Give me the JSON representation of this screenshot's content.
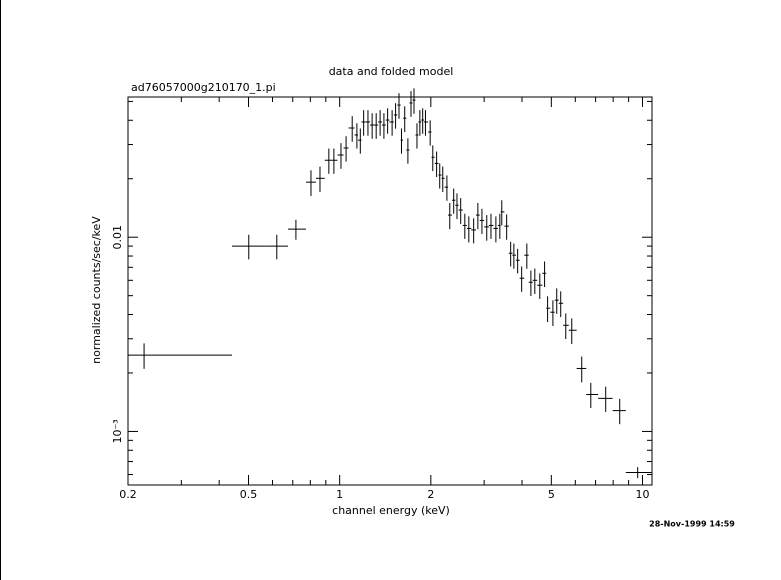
{
  "chart_data": {
    "type": "errorbar",
    "title": "data and folded model",
    "subtitle": "ad76057000g210170_1.pi",
    "x_label": "channel energy (keV)",
    "y_label": "normalized counts/sec/keV",
    "date": "28-Nov-1999 14:59",
    "log_x": true,
    "log_y": true,
    "color": "#000000",
    "xlim": [
      0.2,
      10.75
    ],
    "ylim": [
      0.00053,
      0.0527
    ],
    "xticks": [
      0.2,
      0.5,
      1,
      2,
      5,
      10
    ],
    "minor_xticks": [
      0.3,
      0.4,
      0.6,
      0.7,
      0.8,
      0.9,
      3,
      4,
      6,
      7,
      8,
      9
    ],
    "yticks": [
      {
        "value": 0.001,
        "label": "10⁻³"
      },
      0.01
    ],
    "minor_yticks": [
      0.0006,
      0.0007,
      0.0008,
      0.0009,
      0.002,
      0.003,
      0.004,
      0.005,
      0.006,
      0.007,
      0.008,
      0.009,
      0.02,
      0.03,
      0.04,
      0.05
    ],
    "x": [
      0.226,
      0.501,
      0.62,
      0.717,
      0.804,
      0.861,
      0.921,
      0.957,
      1.01,
      1.05,
      1.1,
      1.14,
      1.17,
      1.2,
      1.24,
      1.28,
      1.32,
      1.36,
      1.4,
      1.44,
      1.49,
      1.53,
      1.57,
      1.6,
      1.64,
      1.68,
      1.72,
      1.76,
      1.8,
      1.84,
      1.88,
      1.92,
      1.99,
      2.03,
      2.09,
      2.14,
      2.19,
      2.26,
      2.31,
      2.38,
      2.44,
      2.51,
      2.59,
      2.67,
      2.77,
      2.86,
      2.95,
      3.06,
      3.16,
      3.28,
      3.38,
      3.43,
      3.56,
      3.67,
      3.76,
      3.87,
      3.99,
      4.15,
      4.28,
      4.41,
      4.58,
      4.75,
      4.86,
      5.06,
      5.21,
      5.37,
      5.58,
      5.84,
      6.3,
      6.75,
      7.56,
      8.41,
      9.64
    ],
    "bins": [
      0.2,
      0.441,
      0.57,
      0.675,
      0.774,
      0.835,
      0.893,
      0.939,
      0.983,
      1.03,
      1.07,
      1.12,
      1.15,
      1.18,
      1.22,
      1.26,
      1.3,
      1.34,
      1.38,
      1.42,
      1.46,
      1.51,
      1.55,
      1.59,
      1.62,
      1.66,
      1.7,
      1.74,
      1.78,
      1.82,
      1.86,
      1.9,
      1.96,
      2.01,
      2.06,
      2.12,
      2.17,
      2.22,
      2.28,
      2.35,
      2.41,
      2.47,
      2.55,
      2.63,
      2.72,
      2.82,
      2.9,
      3.0,
      3.11,
      3.22,
      3.33,
      3.4,
      3.5,
      3.62,
      3.72,
      3.82,
      3.93,
      4.07,
      4.21,
      4.34,
      4.49,
      4.67,
      4.81,
      4.96,
      5.13,
      5.29,
      5.47,
      5.71,
      6.06,
      6.52,
      7.14,
      7.97,
      8.81,
      10.7
    ],
    "values": [
      0.00247,
      0.00899,
      0.00899,
      0.011,
      0.0192,
      0.0201,
      0.0249,
      0.0249,
      0.0265,
      0.0288,
      0.0365,
      0.0336,
      0.0316,
      0.0392,
      0.0392,
      0.0378,
      0.0378,
      0.0392,
      0.0378,
      0.0401,
      0.0392,
      0.0426,
      0.0479,
      0.0316,
      0.041,
      0.0281,
      0.0491,
      0.0508,
      0.0336,
      0.0392,
      0.0401,
      0.0392,
      0.0348,
      0.0258,
      0.024,
      0.0209,
      0.0201,
      0.0181,
      0.013,
      0.0155,
      0.0146,
      0.0138,
      0.0115,
      0.0111,
      0.0109,
      0.013,
      0.0122,
      0.0113,
      0.0115,
      0.0111,
      0.0115,
      0.0135,
      0.0114,
      0.00827,
      0.00808,
      0.00761,
      0.00615,
      0.00808,
      0.00586,
      0.006,
      0.00566,
      0.00652,
      0.00431,
      0.00411,
      0.00474,
      0.00457,
      0.00352,
      0.00332,
      0.00211,
      0.00155,
      0.00148,
      0.00128,
      0.000615
    ],
    "yerr": [
      0.00037,
      0.0013,
      0.0013,
      0.0013,
      0.0029,
      0.003,
      0.0037,
      0.0037,
      0.004,
      0.0043,
      0.0055,
      0.005,
      0.0047,
      0.0059,
      0.0059,
      0.0057,
      0.0057,
      0.0059,
      0.0057,
      0.006,
      0.0059,
      0.0064,
      0.0072,
      0.0047,
      0.0062,
      0.0042,
      0.0074,
      0.0076,
      0.005,
      0.0059,
      0.006,
      0.0059,
      0.0052,
      0.0039,
      0.0036,
      0.0031,
      0.003,
      0.0027,
      0.002,
      0.0023,
      0.0022,
      0.0021,
      0.0017,
      0.0017,
      0.0016,
      0.002,
      0.0018,
      0.0017,
      0.0017,
      0.0017,
      0.0017,
      0.002,
      0.0017,
      0.0012,
      0.0012,
      0.0011,
      0.00092,
      0.0012,
      0.00088,
      0.0009,
      0.00085,
      0.00098,
      0.00065,
      0.00062,
      0.00071,
      0.00069,
      0.00053,
      0.0005,
      0.00032,
      0.00023,
      0.00022,
      0.00019,
      4e-05
    ]
  }
}
